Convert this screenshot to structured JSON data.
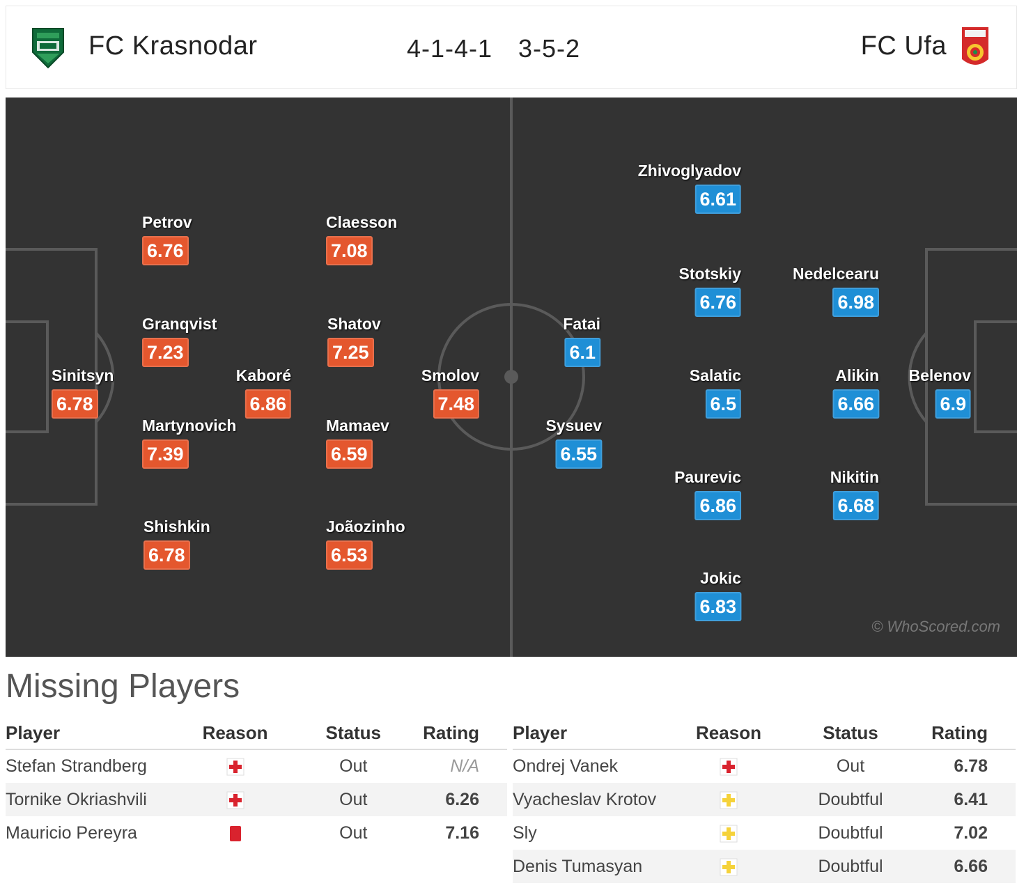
{
  "header": {
    "home_team": "FC Krasnodar",
    "away_team": "FC Ufa",
    "home_formation": "4-1-4-1",
    "away_formation": "3-5-2"
  },
  "colors": {
    "home_rating": "#e4572e",
    "away_rating": "#1f8fd6",
    "pitch": "#333333"
  },
  "pitch": {
    "watermark": "© WhoScored.com",
    "home_players": [
      {
        "id": "sinitsyn",
        "name": "Sinitsyn",
        "rating": "6.78"
      },
      {
        "id": "petrov",
        "name": "Petrov",
        "rating": "6.76"
      },
      {
        "id": "granqvist",
        "name": "Granqvist",
        "rating": "7.23"
      },
      {
        "id": "martynovich",
        "name": "Martynovich",
        "rating": "7.39"
      },
      {
        "id": "shishkin",
        "name": "Shishkin",
        "rating": "6.78"
      },
      {
        "id": "kabore",
        "name": "Kaboré",
        "rating": "6.86"
      },
      {
        "id": "claesson",
        "name": "Claesson",
        "rating": "7.08"
      },
      {
        "id": "shatov",
        "name": "Shatov",
        "rating": "7.25"
      },
      {
        "id": "mamaev",
        "name": "Mamaev",
        "rating": "6.59"
      },
      {
        "id": "joaozinho",
        "name": "Joãozinho",
        "rating": "6.53"
      },
      {
        "id": "smolov",
        "name": "Smolov",
        "rating": "7.48"
      }
    ],
    "away_players": [
      {
        "id": "fatai",
        "name": "Fatai",
        "rating": "6.1"
      },
      {
        "id": "sysuev",
        "name": "Sysuev",
        "rating": "6.55"
      },
      {
        "id": "zhivoglyadov",
        "name": "Zhivoglyadov",
        "rating": "6.61"
      },
      {
        "id": "stotskiy",
        "name": "Stotskiy",
        "rating": "6.76"
      },
      {
        "id": "salatic",
        "name": "Salatic",
        "rating": "6.5"
      },
      {
        "id": "paurevic",
        "name": "Paurevic",
        "rating": "6.86"
      },
      {
        "id": "jokic",
        "name": "Jokic",
        "rating": "6.83"
      },
      {
        "id": "nedelcearu",
        "name": "Nedelcearu",
        "rating": "6.98"
      },
      {
        "id": "alikin",
        "name": "Alikin",
        "rating": "6.66"
      },
      {
        "id": "nikitin",
        "name": "Nikitin",
        "rating": "6.68"
      },
      {
        "id": "belenov",
        "name": "Belenov",
        "rating": "6.9"
      }
    ]
  },
  "missing": {
    "title": "Missing Players",
    "columns": {
      "player": "Player",
      "reason": "Reason",
      "status": "Status",
      "rating": "Rating"
    },
    "home": [
      {
        "player": "Stefan Strandberg",
        "reason_icon": "injury-icon",
        "status": "Out",
        "rating": "N/A"
      },
      {
        "player": "Tornike Okriashvili",
        "reason_icon": "injury-icon",
        "status": "Out",
        "rating": "6.26"
      },
      {
        "player": "Mauricio Pereyra",
        "reason_icon": "red-card-icon",
        "status": "Out",
        "rating": "7.16"
      }
    ],
    "away": [
      {
        "player": "Ondrej Vanek",
        "reason_icon": "injury-icon",
        "status": "Out",
        "rating": "6.78"
      },
      {
        "player": "Vyacheslav Krotov",
        "reason_icon": "doubtful-icon",
        "status": "Doubtful",
        "rating": "6.41"
      },
      {
        "player": "Sly",
        "reason_icon": "doubtful-icon",
        "status": "Doubtful",
        "rating": "7.02"
      },
      {
        "player": "Denis Tumasyan",
        "reason_icon": "doubtful-icon",
        "status": "Doubtful",
        "rating": "6.66"
      }
    ]
  }
}
